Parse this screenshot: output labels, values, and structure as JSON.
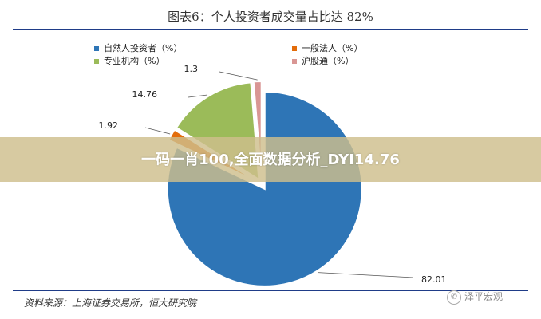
{
  "chart_data": {
    "type": "pie",
    "title": "图表6：个人投资者成交量占比达 82%",
    "legend_position": "top",
    "slices": [
      {
        "name": "自然人投资者（%）",
        "value": 82.01,
        "label": "82.01",
        "color": "#2e75b6"
      },
      {
        "name": "一般法人（%）",
        "value": 1.92,
        "label": "1.92",
        "color": "#e36c0a"
      },
      {
        "name": "专业机构（%）",
        "value": 14.76,
        "label": "14.76",
        "color": "#9bbb59"
      },
      {
        "name": "沪股通（%）",
        "value": 1.3,
        "label": "1.3",
        "color": "#d99694"
      }
    ]
  },
  "overlay": {
    "text": "一码一肖100,全面数据分析_DYI14.76"
  },
  "source": "资料来源：上海证券交易所，恒大研究院",
  "watermark": "泽平宏观"
}
